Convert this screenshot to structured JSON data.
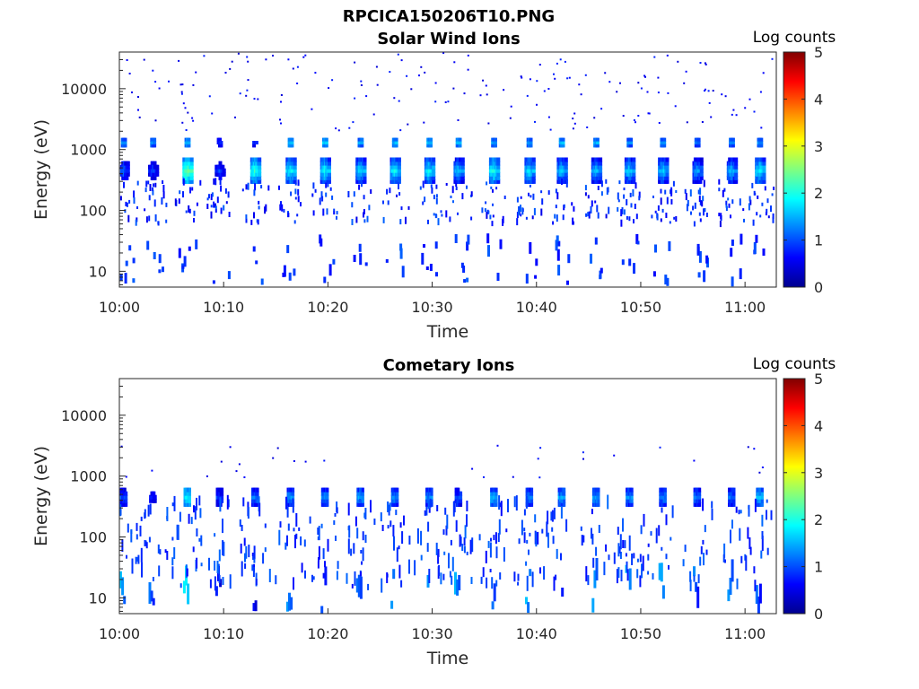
{
  "figure": {
    "title": "RPCICA150206T10.PNG"
  },
  "chart_data": [
    {
      "type": "heatmap",
      "title": "Solar Wind Ions",
      "xlabel": "Time",
      "ylabel": "Energy (eV)",
      "x_range": [
        "10:00",
        "11:03"
      ],
      "y_range": [
        5.5,
        40000
      ],
      "y_scale": "log",
      "x_ticks": [
        "10:00",
        "10:10",
        "10:20",
        "10:30",
        "10:40",
        "10:50",
        "11:00"
      ],
      "y_ticks": [
        {
          "value": 10,
          "label": "10"
        },
        {
          "value": 100,
          "label": "100"
        },
        {
          "value": 1000,
          "label": "1000"
        },
        {
          "value": 10000,
          "label": "10000"
        }
      ],
      "colorbar": {
        "label": "Log counts",
        "min": 0,
        "max": 5,
        "ticks": [
          "0",
          "1",
          "2",
          "3",
          "4",
          "5"
        ],
        "colormap": "jet"
      },
      "sweep_times_min": [
        0.3,
        3.1,
        6.4,
        9.5,
        12.9,
        16.3,
        19.6,
        23.0,
        26.3,
        29.6,
        32.4,
        35.8,
        39.2,
        42.3,
        45.6,
        48.8,
        52.0,
        55.3,
        58.6,
        61.3
      ],
      "features": [
        {
          "name": "main beam",
          "energy_ev": 450,
          "log_counts": [
            1.2,
            1.0,
            2.4,
            1.0,
            2.1,
            1.9,
            1.9,
            1.8,
            1.9,
            1.9,
            1.6,
            2.0,
            1.8,
            1.7,
            1.6,
            1.7,
            1.7,
            1.5,
            1.6,
            1.9
          ]
        },
        {
          "name": "alpha beam",
          "energy_ev": 1300,
          "log_counts": [
            1.3,
            1.3,
            1.5,
            0.8,
            0.8,
            1.6,
            1.6,
            1.4,
            1.5,
            1.6,
            1.5,
            1.4,
            1.4,
            1.5,
            1.5,
            1.3,
            1.3,
            1.2,
            1.3,
            1.3
          ]
        },
        {
          "name": "low energy",
          "energy_range_ev": [
            6,
            35
          ],
          "log_counts": 0.6
        },
        {
          "name": "scattered",
          "energy_range_ev": [
            60,
            300
          ],
          "log_counts": 0.5
        }
      ]
    },
    {
      "type": "heatmap",
      "title": "Cometary Ions",
      "xlabel": "Time",
      "ylabel": "Energy (eV)",
      "x_range": [
        "10:00",
        "11:03"
      ],
      "y_range": [
        5.5,
        40000
      ],
      "y_scale": "log",
      "x_ticks": [
        "10:00",
        "10:10",
        "10:20",
        "10:30",
        "10:40",
        "10:50",
        "11:00"
      ],
      "y_ticks": [
        {
          "value": 10,
          "label": "10"
        },
        {
          "value": 100,
          "label": "100"
        },
        {
          "value": 1000,
          "label": "1000"
        },
        {
          "value": 10000,
          "label": "10000"
        }
      ],
      "colorbar": {
        "label": "Log counts",
        "min": 0,
        "max": 5,
        "ticks": [
          "0",
          "1",
          "2",
          "3",
          "4",
          "5"
        ],
        "colormap": "jet"
      },
      "sweep_times_min": [
        0.3,
        3.1,
        6.4,
        9.5,
        12.9,
        16.3,
        19.6,
        23.0,
        26.3,
        29.6,
        32.4,
        35.8,
        39.2,
        42.3,
        45.6,
        48.8,
        52.0,
        55.3,
        58.6,
        61.3
      ],
      "features": [
        {
          "name": "beam",
          "energy_ev": 450,
          "log_counts": [
            1.0,
            0.7,
            1.8,
            0.9,
            1.2,
            1.3,
            1.3,
            1.4,
            1.3,
            1.3,
            1.0,
            1.5,
            1.3,
            1.4,
            1.4,
            1.3,
            1.3,
            1.2,
            1.2,
            1.5
          ]
        },
        {
          "name": "low energy",
          "energy_range_ev": [
            6,
            30
          ],
          "log_counts": [
            1.6,
            1.2,
            1.9,
            0.9,
            0.8,
            1.5,
            1.0,
            1.2,
            1.5,
            1.5,
            1.5,
            1.3,
            1.5,
            1.2,
            1.5,
            1.6,
            1.6,
            1.2,
            1.3,
            1.2
          ]
        },
        {
          "name": "streaks",
          "energy_range_ev": [
            15,
            400
          ],
          "log_counts": 0.9
        }
      ]
    }
  ]
}
